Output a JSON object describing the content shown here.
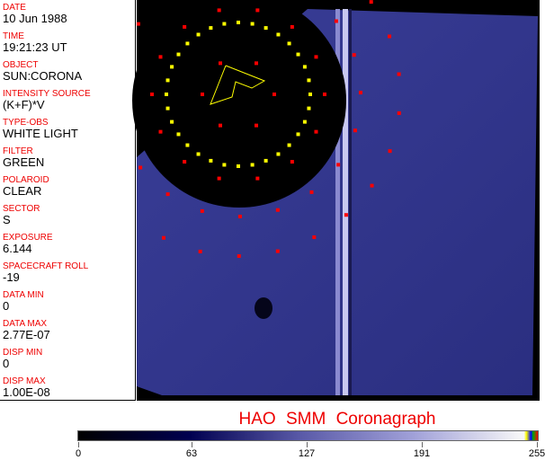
{
  "fields": [
    {
      "label": "DATE",
      "value": "10 Jun 1988"
    },
    {
      "label": "TIME",
      "value": "19:21:23 UT"
    },
    {
      "label": "OBJECT",
      "value": "SUN:CORONA"
    },
    {
      "label": "INTENSITY SOURCE",
      "value": "(K+F)*V"
    },
    {
      "label": "TYPE-OBS",
      "value": "WHITE LIGHT"
    },
    {
      "label": "FILTER",
      "value": "GREEN"
    },
    {
      "label": "POLAROID",
      "value": "CLEAR"
    },
    {
      "label": "SECTOR",
      "value": "S"
    },
    {
      "label": "EXPOSURE",
      "value": "6.144"
    },
    {
      "label": "SPACECRAFT ROLL",
      "value": "-19"
    },
    {
      "label": "DATA MIN",
      "value": "0"
    },
    {
      "label": "DATA MAX",
      "value": "2.77E-07"
    },
    {
      "label": "DISP MIN",
      "value": "0"
    },
    {
      "label": "DISP MAX",
      "value": "1.00E-08"
    }
  ],
  "title": "HAO  SMM Coronagraph",
  "colorbar": {
    "ticks": [
      "0",
      "63",
      "127",
      "191",
      "255"
    ],
    "min": 0,
    "max": 255,
    "colors": [
      "#000000",
      "#000050",
      "#5a5aa8",
      "#a0a0d8",
      "#f8f8f8"
    ]
  },
  "overlay_colors": {
    "grid": "#ff0000",
    "limb": "#ffff00",
    "background": "#2a2e8a"
  }
}
